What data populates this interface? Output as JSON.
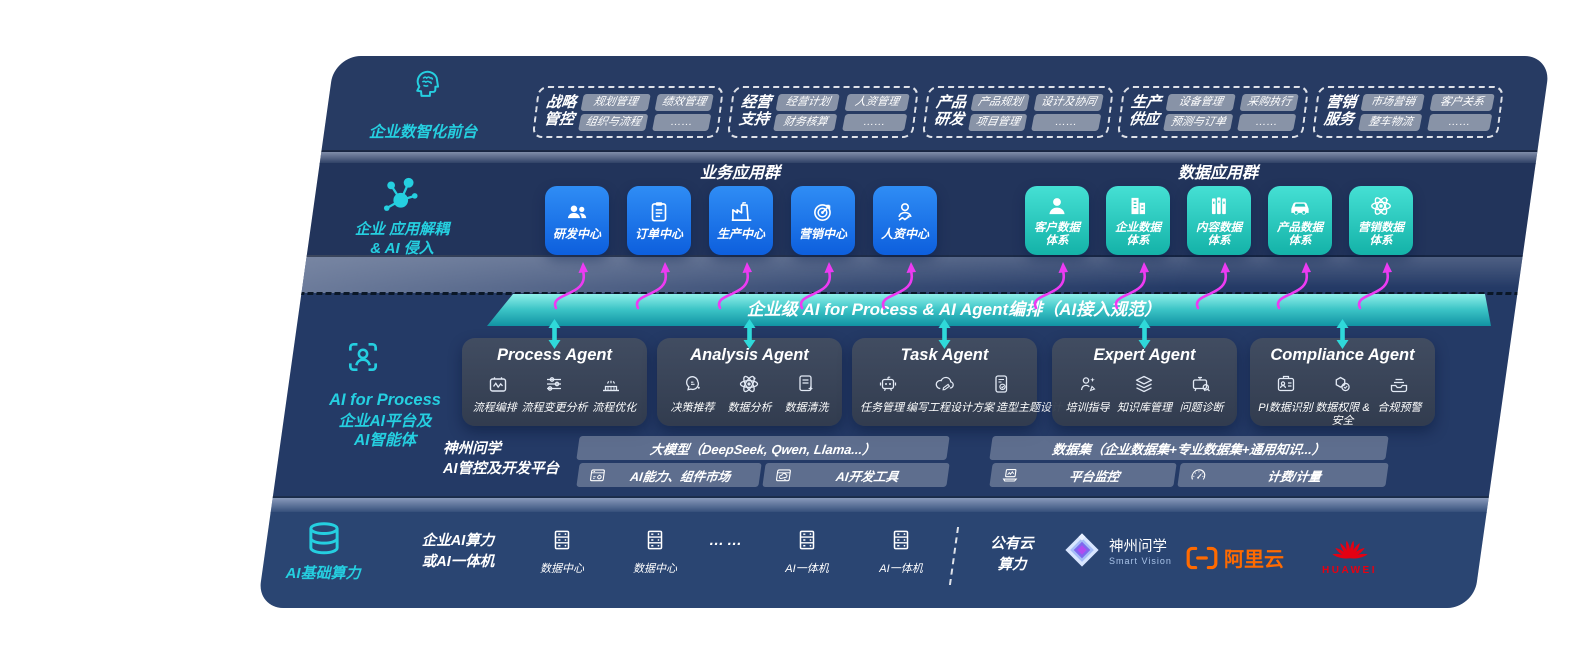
{
  "colors": {
    "accent_cyan": "#25cfe0",
    "pink_arrow": "#ec3bf2",
    "teal_arrow": "#2fd9d9",
    "blue_box": "#1170ea",
    "teal_box": "#2bd0c6",
    "band_navy": "#243a66",
    "banner_teal": "#2cb7b9",
    "ali_orange": "#ff6a00",
    "huawei_red": "#e60012"
  },
  "front_layer": {
    "label": "企业数智化前台",
    "icon": "brain-icon",
    "groups": [
      {
        "title_lines": [
          "战略",
          "管控"
        ],
        "chips": [
          "规划管理",
          "绩效管理",
          "组织与流程",
          "……"
        ]
      },
      {
        "title_lines": [
          "经营",
          "支持"
        ],
        "chips": [
          "经营计划",
          "人资管理",
          "财务核算",
          "……"
        ]
      },
      {
        "title_lines": [
          "产品",
          "研发"
        ],
        "chips": [
          "产品规划",
          "设计及协同",
          "项目管理",
          "……"
        ]
      },
      {
        "title_lines": [
          "生产",
          "供应"
        ],
        "chips": [
          "设备管理",
          "采购执行",
          "预测与订单",
          "……"
        ]
      },
      {
        "title_lines": [
          "营销",
          "服务"
        ],
        "chips": [
          "市场营销",
          "客户关系",
          "整车物流",
          "……"
        ]
      }
    ]
  },
  "decouple_layer": {
    "label_lines": [
      "企业 应用解耦",
      "& AI 侵入"
    ],
    "icon": "molecule-icon",
    "business_group": {
      "title": "业务应用群",
      "items": [
        {
          "label": "研发中心",
          "icon": "team-icon"
        },
        {
          "label": "订单中心",
          "icon": "clipboard-icon"
        },
        {
          "label": "生产中心",
          "icon": "factory-icon"
        },
        {
          "label": "营销中心",
          "icon": "target-icon"
        },
        {
          "label": "人资中心",
          "icon": "hr-trend-icon"
        }
      ]
    },
    "data_group": {
      "title": "数据应用群",
      "items": [
        {
          "label": "客户数据\n体系",
          "icon": "user-icon"
        },
        {
          "label": "企业数据\n体系",
          "icon": "building-icon"
        },
        {
          "label": "内容数据\n体系",
          "icon": "books-icon"
        },
        {
          "label": "产品数据\n体系",
          "icon": "car-icon"
        },
        {
          "label": "营销数据\n体系",
          "icon": "atom-icon"
        }
      ]
    }
  },
  "banner": {
    "text": "企业级 AI for Process & AI Agent编排（AI接入规范）"
  },
  "ai_layer": {
    "icon": "face-scan-icon",
    "title": "AI for Process",
    "subtitle_lines": [
      "企业AI平台及",
      "AI智能体"
    ],
    "agents": [
      {
        "title": "Process Agent",
        "items": [
          {
            "label": "流程编排",
            "icon": "flow-box-icon"
          },
          {
            "label": "流程变更分析",
            "icon": "flow-sliders-icon"
          },
          {
            "label": "流程优化",
            "icon": "flow-optimize-icon"
          }
        ]
      },
      {
        "title": "Analysis Agent",
        "items": [
          {
            "label": "决策推荐",
            "icon": "decision-head-icon"
          },
          {
            "label": "数据分析",
            "icon": "atom-icon"
          },
          {
            "label": "数据清洗",
            "icon": "doc-clean-icon"
          }
        ]
      },
      {
        "title": "Task Agent",
        "items": [
          {
            "label": "任务管理",
            "icon": "robot-grid-icon"
          },
          {
            "label": "编写工程设计方案",
            "icon": "cloud-write-icon"
          },
          {
            "label": "造型主题设计",
            "icon": "design-check-icon"
          }
        ]
      },
      {
        "title": "Expert Agent",
        "items": [
          {
            "label": "培训指导",
            "icon": "training-icon"
          },
          {
            "label": "知识库管理",
            "icon": "layers-icon"
          },
          {
            "label": "问题诊断",
            "icon": "diagnose-icon"
          }
        ]
      },
      {
        "title": "Compliance Agent",
        "items": [
          {
            "label": "PI数据识别",
            "icon": "id-card-icon"
          },
          {
            "label": "数据权限 &\n安全",
            "icon": "shield-link-icon"
          },
          {
            "label": "合规预警",
            "icon": "inbox-alert-icon"
          }
        ]
      }
    ],
    "platform": {
      "name_lines": [
        "神州问学",
        "AI管控及开发平台"
      ],
      "model_bar": "大模型（DeepSeek, Qwen, Llama...）",
      "dataset_bar": "数据集（企业数据集+专业数据集+通用知识...）",
      "left_cells": [
        {
          "label": "AI能力、组件市场",
          "icon": "components-icon"
        },
        {
          "label": "AI开发工具",
          "icon": "devtools-icon"
        }
      ],
      "right_cells": [
        {
          "label": "平台监控",
          "icon": "monitor-icon"
        },
        {
          "label": "计费/计量",
          "icon": "meter-icon"
        }
      ]
    }
  },
  "compute_layer": {
    "label": "AI基础算力",
    "icon": "database-icon",
    "group_label_lines": [
      "企业AI算力",
      "或AI一体机"
    ],
    "nodes": [
      {
        "label": "数据中心",
        "icon": "server-icon"
      },
      {
        "label": "数据中心",
        "icon": "server-icon"
      },
      {
        "label": "……",
        "icon": "dots"
      },
      {
        "label": "AI一体机",
        "icon": "server-icon"
      },
      {
        "label": "AI一体机",
        "icon": "server-icon"
      }
    ],
    "public_cloud_lines": [
      "公有云",
      "算力"
    ],
    "logos": [
      {
        "name": "神州问学",
        "subtitle": "Smart Vision",
        "icon": "smartvision-logo"
      },
      {
        "name": "阿里云",
        "icon": "alicloud-logo"
      },
      {
        "name": "HUAWEI",
        "icon": "huawei-logo"
      }
    ]
  }
}
